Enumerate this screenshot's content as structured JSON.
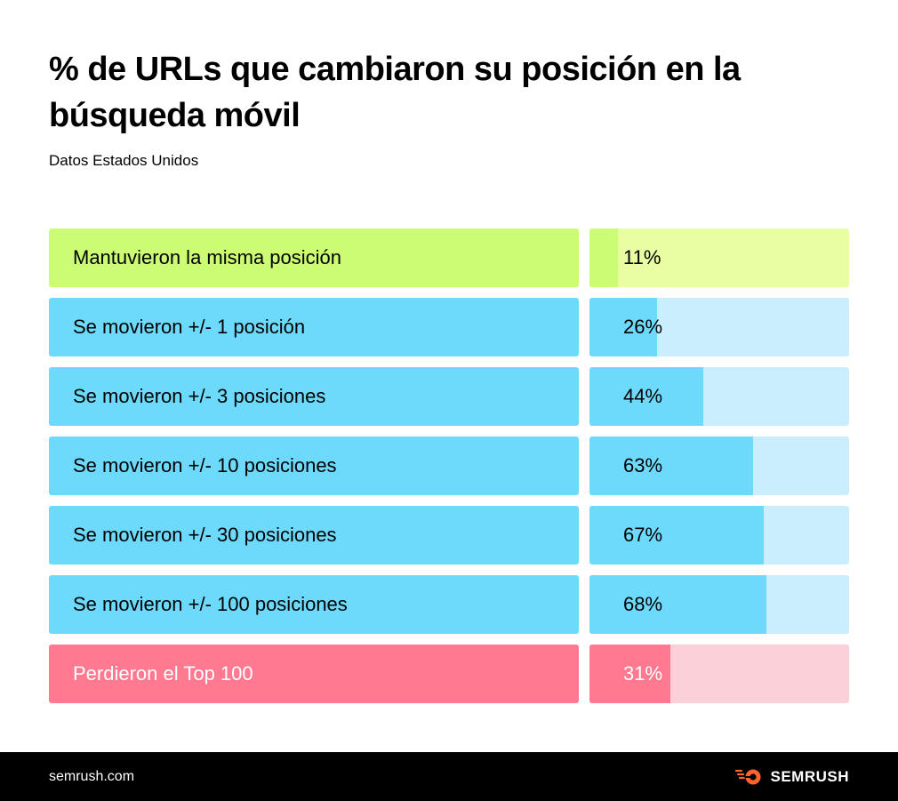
{
  "header": {
    "title": "% de URLs que cambiaron su posición en la búsqueda móvil",
    "subtitle": "Datos Estados Unidos"
  },
  "chart_data": {
    "type": "bar",
    "title": "% de URLs que cambiaron su posición en la búsqueda móvil",
    "subtitle": "Datos Estados Unidos",
    "ylim": [
      0,
      100
    ],
    "categories": [
      "Mantuvieron la misma posición",
      "Se movieron +/- 1 posición",
      "Se movieron +/- 3 posiciones",
      "Se movieron +/- 10 posiciones",
      "Se movieron +/- 30 posiciones",
      "Se movieron +/- 100 posiciones",
      "Perdieron el Top 100"
    ],
    "values": [
      11,
      26,
      44,
      63,
      67,
      68,
      31
    ],
    "value_labels": [
      "11%",
      "26%",
      "44%",
      "63%",
      "67%",
      "68%",
      "31%"
    ],
    "row_color_groups": [
      "same",
      "moved",
      "moved",
      "moved",
      "moved",
      "moved",
      "lost"
    ],
    "colors": {
      "same": {
        "label": "#ccfc74",
        "fill": "#ccfc74",
        "track": "#e9fea3",
        "text": "#000000"
      },
      "moved": {
        "label": "#6ddafc",
        "fill": "#6ddafc",
        "track": "#caeefd",
        "text": "#000000"
      },
      "lost": {
        "label": "#ff7a90",
        "fill": "#ff7a90",
        "track": "#fbd0d8",
        "text": "#ffffff"
      }
    }
  },
  "footer": {
    "url": "semrush.com",
    "brand": "SEMRUSH",
    "brand_icon": "semrush-fire-icon",
    "background": "#000000",
    "brand_color": "#ff642d"
  }
}
